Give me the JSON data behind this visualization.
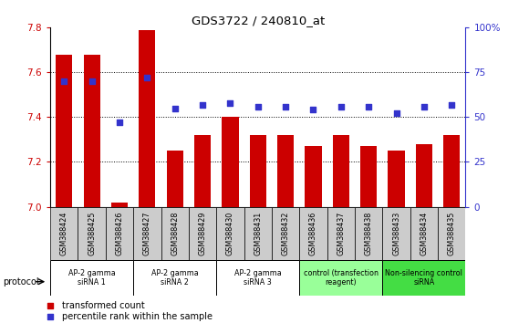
{
  "title": "GDS3722 / 240810_at",
  "samples": [
    "GSM388424",
    "GSM388425",
    "GSM388426",
    "GSM388427",
    "GSM388428",
    "GSM388429",
    "GSM388430",
    "GSM388431",
    "GSM388432",
    "GSM388436",
    "GSM388437",
    "GSM388438",
    "GSM388433",
    "GSM388434",
    "GSM388435"
  ],
  "bar_values": [
    7.68,
    7.68,
    7.02,
    7.79,
    7.25,
    7.32,
    7.4,
    7.32,
    7.32,
    7.27,
    7.32,
    7.27,
    7.25,
    7.28,
    7.32
  ],
  "dot_values": [
    70,
    70,
    47,
    72,
    55,
    57,
    58,
    56,
    56,
    54,
    56,
    56,
    52,
    56,
    57
  ],
  "bar_color": "#cc0000",
  "dot_color": "#3333cc",
  "ylim": [
    7.0,
    7.8
  ],
  "y2lim": [
    0,
    100
  ],
  "yticks": [
    7.0,
    7.2,
    7.4,
    7.6,
    7.8
  ],
  "y2ticks": [
    0,
    25,
    50,
    75,
    100
  ],
  "y2ticklabels": [
    "0",
    "25",
    "50",
    "75",
    "100%"
  ],
  "bar_bottom": 7.0,
  "groups": [
    {
      "label": "AP-2 gamma\nsiRNA 1",
      "start": 0,
      "end": 3,
      "color": "#ffffff"
    },
    {
      "label": "AP-2 gamma\nsiRNA 2",
      "start": 3,
      "end": 6,
      "color": "#ffffff"
    },
    {
      "label": "AP-2 gamma\nsiRNA 3",
      "start": 6,
      "end": 9,
      "color": "#ffffff"
    },
    {
      "label": "control (transfection\nreagent)",
      "start": 9,
      "end": 12,
      "color": "#99ff99"
    },
    {
      "label": "Non-silencing control\nsiRNA",
      "start": 12,
      "end": 15,
      "color": "#44dd44"
    }
  ],
  "protocol_label": "protocol",
  "legend_bar_label": "transformed count",
  "legend_dot_label": "percentile rank within the sample",
  "tick_label_color": "#cc0000",
  "tick_label_color2": "#3333cc",
  "grid_color": "#000000",
  "sample_box_color": "#cccccc",
  "spine_color": "#000000"
}
